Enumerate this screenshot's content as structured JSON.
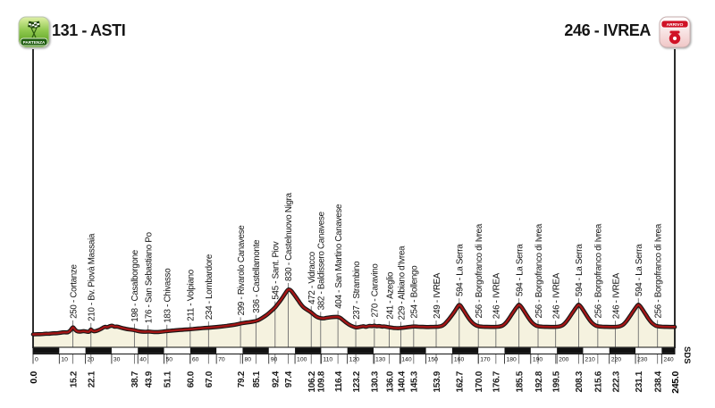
{
  "header": {
    "start_label": "131 - ASTI",
    "finish_label": "246 - IVREA",
    "start_badge": "PARTENZA",
    "finish_badge": "ARRIVO"
  },
  "watermark": "SDS",
  "colors": {
    "profile_red": "#a31616",
    "profile_outline": "#151515",
    "area_fill": "#f5f2df",
    "waypoint_line": "#6e6e6e",
    "start_green_dark": "#1e5c0e",
    "finish_red": "#d01226",
    "text": "#151515"
  },
  "chart_data": {
    "type": "area",
    "title": "",
    "xlabel": "km",
    "ylabel": "m",
    "x_range": [
      0,
      245
    ],
    "ruler_interval_km": 10,
    "ruler_tick_labels": [
      0,
      10,
      20,
      30,
      40,
      50,
      60,
      70,
      80,
      90,
      100,
      110,
      120,
      130,
      140,
      150,
      160,
      170,
      180,
      190,
      200,
      210,
      220,
      230,
      240
    ],
    "waypoints": [
      {
        "km": 0.0,
        "elev": 131,
        "label": "",
        "bold": true
      },
      {
        "km": 15.2,
        "elev": 250,
        "label": "250 - Cortanze"
      },
      {
        "km": 22.1,
        "elev": 210,
        "label": "210 - Bv. Piovà Massaia"
      },
      {
        "km": 38.7,
        "elev": 198,
        "label": "198 - Casalborgone"
      },
      {
        "km": 43.9,
        "elev": 176,
        "label": "176 - San Sebastiano Po"
      },
      {
        "km": 51.1,
        "elev": 183,
        "label": "183 - Chivasso"
      },
      {
        "km": 60.0,
        "elev": 211,
        "label": "211 - Volpiano"
      },
      {
        "km": 67.0,
        "elev": 234,
        "label": "234 - Lombardore"
      },
      {
        "km": 79.2,
        "elev": 299,
        "label": "299 - Rivarolo Canavese"
      },
      {
        "km": 85.1,
        "elev": 336,
        "label": "336 - Castellamonte"
      },
      {
        "km": 92.4,
        "elev": 545,
        "label": "545 - Sant. Piov"
      },
      {
        "km": 97.4,
        "elev": 830,
        "label": "830 - Castelnuovo Nigra"
      },
      {
        "km": 106.2,
        "elev": 472,
        "label": "472 - Vidracco"
      },
      {
        "km": 109.8,
        "elev": 382,
        "label": "382 - Baldissero Canavese"
      },
      {
        "km": 116.4,
        "elev": 404,
        "label": "404 - San Martino Canavese"
      },
      {
        "km": 123.2,
        "elev": 237,
        "label": "237 - Strambino"
      },
      {
        "km": 130.3,
        "elev": 270,
        "label": "270 - Caravino"
      },
      {
        "km": 136.0,
        "elev": 241,
        "label": "241 - Azeglio"
      },
      {
        "km": 140.4,
        "elev": 229,
        "label": "229 - Albiano d'Ivrea"
      },
      {
        "km": 145.3,
        "elev": 254,
        "label": "254 - Bollengo"
      },
      {
        "km": 153.9,
        "elev": 249,
        "label": "249 - IVREA"
      },
      {
        "km": 162.7,
        "elev": 594,
        "label": "594 - La Serra"
      },
      {
        "km": 170.0,
        "elev": 256,
        "label": "256 - Borgofranco di Ivrea"
      },
      {
        "km": 176.7,
        "elev": 246,
        "label": "246 - IVREA"
      },
      {
        "km": 185.5,
        "elev": 594,
        "label": "594 - La Serra"
      },
      {
        "km": 192.8,
        "elev": 256,
        "label": "256 - Borgofranco di Ivrea"
      },
      {
        "km": 199.5,
        "elev": 246,
        "label": "246 - IVREA"
      },
      {
        "km": 208.3,
        "elev": 594,
        "label": "594 - La Serra"
      },
      {
        "km": 215.6,
        "elev": 256,
        "label": "256 - Borgofranco di Ivrea"
      },
      {
        "km": 222.3,
        "elev": 246,
        "label": "246 - IVREA"
      },
      {
        "km": 231.1,
        "elev": 594,
        "label": "594 - La Serra"
      },
      {
        "km": 238.4,
        "elev": 256,
        "label": "256 - Borgofranco di Ivrea"
      },
      {
        "km": 245.0,
        "elev": 246,
        "label": "",
        "bold": true
      }
    ],
    "profile": [
      [
        0,
        131
      ],
      [
        1.5,
        136
      ],
      [
        3,
        133
      ],
      [
        4.5,
        142
      ],
      [
        6,
        139
      ],
      [
        7.5,
        150
      ],
      [
        9,
        147
      ],
      [
        10.5,
        158
      ],
      [
        12,
        166
      ],
      [
        13.2,
        158
      ],
      [
        14.3,
        190
      ],
      [
        15.2,
        250
      ],
      [
        15.8,
        215
      ],
      [
        16.5,
        182
      ],
      [
        17.5,
        172
      ],
      [
        18.5,
        176
      ],
      [
        19.5,
        183
      ],
      [
        20.5,
        172
      ],
      [
        21.4,
        168
      ],
      [
        21.9,
        200
      ],
      [
        22.1,
        210
      ],
      [
        22.6,
        186
      ],
      [
        23.5,
        176
      ],
      [
        24.5,
        190
      ],
      [
        25.5,
        205
      ],
      [
        26.5,
        228
      ],
      [
        27.5,
        252
      ],
      [
        28.3,
        238
      ],
      [
        29.2,
        258
      ],
      [
        30.2,
        268
      ],
      [
        31,
        248
      ],
      [
        32,
        254
      ],
      [
        33,
        240
      ],
      [
        34.5,
        224
      ],
      [
        36,
        212
      ],
      [
        37.5,
        204
      ],
      [
        38.7,
        198
      ],
      [
        40,
        182
      ],
      [
        41.5,
        173
      ],
      [
        43,
        170
      ],
      [
        43.9,
        176
      ],
      [
        45.5,
        169
      ],
      [
        47,
        166
      ],
      [
        48.5,
        170
      ],
      [
        50,
        176
      ],
      [
        51.1,
        183
      ],
      [
        53,
        189
      ],
      [
        55,
        196
      ],
      [
        57,
        202
      ],
      [
        58.5,
        207
      ],
      [
        60,
        211
      ],
      [
        62,
        219
      ],
      [
        64,
        226
      ],
      [
        65.5,
        230
      ],
      [
        67,
        234
      ],
      [
        69,
        241
      ],
      [
        71,
        249
      ],
      [
        73,
        258
      ],
      [
        75,
        268
      ],
      [
        77,
        280
      ],
      [
        79.2,
        299
      ],
      [
        81,
        312
      ],
      [
        83,
        322
      ],
      [
        85.1,
        336
      ],
      [
        86.5,
        360
      ],
      [
        88,
        398
      ],
      [
        89.5,
        440
      ],
      [
        91,
        495
      ],
      [
        92.4,
        545
      ],
      [
        93.5,
        605
      ],
      [
        94.7,
        668
      ],
      [
        95.7,
        730
      ],
      [
        96.6,
        785
      ],
      [
        97.4,
        830
      ],
      [
        98.2,
        822
      ],
      [
        99,
        785
      ],
      [
        99.8,
        740
      ],
      [
        100.6,
        695
      ],
      [
        101.4,
        648
      ],
      [
        102.2,
        600
      ],
      [
        103,
        560
      ],
      [
        103.8,
        532
      ],
      [
        104.6,
        513
      ],
      [
        105.4,
        492
      ],
      [
        106.2,
        472
      ],
      [
        107,
        442
      ],
      [
        107.9,
        412
      ],
      [
        108.8,
        392
      ],
      [
        109.8,
        382
      ],
      [
        110.8,
        377
      ],
      [
        111.8,
        384
      ],
      [
        113,
        392
      ],
      [
        114.2,
        398
      ],
      [
        115.3,
        401
      ],
      [
        116.4,
        404
      ],
      [
        117.4,
        385
      ],
      [
        118.4,
        352
      ],
      [
        119.4,
        318
      ],
      [
        120.5,
        285
      ],
      [
        121.8,
        258
      ],
      [
        123.2,
        237
      ],
      [
        124.2,
        241
      ],
      [
        125.2,
        252
      ],
      [
        126.2,
        258
      ],
      [
        127,
        246
      ],
      [
        127.8,
        256
      ],
      [
        128.6,
        263
      ],
      [
        129.4,
        256
      ],
      [
        130.3,
        270
      ],
      [
        131.2,
        254
      ],
      [
        132.2,
        262
      ],
      [
        133.2,
        250
      ],
      [
        134.2,
        256
      ],
      [
        135.1,
        246
      ],
      [
        136,
        241
      ],
      [
        137,
        234
      ],
      [
        138.2,
        229
      ],
      [
        139.3,
        227
      ],
      [
        140.4,
        229
      ],
      [
        141.6,
        236
      ],
      [
        143,
        243
      ],
      [
        144.2,
        249
      ],
      [
        145.3,
        254
      ],
      [
        146.5,
        251
      ],
      [
        148,
        248
      ],
      [
        149.5,
        246
      ],
      [
        151,
        245
      ],
      [
        152.5,
        247
      ],
      [
        153.9,
        249
      ],
      [
        155.3,
        253
      ],
      [
        156.5,
        268
      ],
      [
        157.5,
        305
      ],
      [
        158.5,
        352
      ],
      [
        159.5,
        405
      ],
      [
        160.5,
        460
      ],
      [
        161.4,
        515
      ],
      [
        162.1,
        560
      ],
      [
        162.7,
        594
      ],
      [
        163.3,
        572
      ],
      [
        164,
        525
      ],
      [
        165,
        462
      ],
      [
        166,
        398
      ],
      [
        167,
        342
      ],
      [
        168,
        300
      ],
      [
        169,
        272
      ],
      [
        170,
        256
      ],
      [
        171.2,
        251
      ],
      [
        172.5,
        248
      ],
      [
        174,
        247
      ],
      [
        175.4,
        246
      ],
      [
        176.7,
        246
      ],
      [
        178,
        251
      ],
      [
        179.2,
        264
      ],
      [
        180.2,
        295
      ],
      [
        181.2,
        345
      ],
      [
        182.2,
        405
      ],
      [
        183.2,
        468
      ],
      [
        184.2,
        528
      ],
      [
        185,
        570
      ],
      [
        185.5,
        594
      ],
      [
        186.1,
        574
      ],
      [
        186.9,
        528
      ],
      [
        187.9,
        465
      ],
      [
        188.9,
        400
      ],
      [
        189.9,
        342
      ],
      [
        190.9,
        298
      ],
      [
        191.9,
        268
      ],
      [
        192.8,
        256
      ],
      [
        194,
        251
      ],
      [
        195.4,
        248
      ],
      [
        196.8,
        247
      ],
      [
        198.2,
        246
      ],
      [
        199.5,
        246
      ],
      [
        200.8,
        252
      ],
      [
        202,
        266
      ],
      [
        203,
        298
      ],
      [
        204,
        348
      ],
      [
        205,
        408
      ],
      [
        206,
        470
      ],
      [
        207,
        530
      ],
      [
        207.8,
        572
      ],
      [
        208.3,
        594
      ],
      [
        208.9,
        574
      ],
      [
        209.7,
        528
      ],
      [
        210.7,
        465
      ],
      [
        211.7,
        400
      ],
      [
        212.7,
        342
      ],
      [
        213.7,
        298
      ],
      [
        214.7,
        268
      ],
      [
        215.6,
        256
      ],
      [
        216.8,
        251
      ],
      [
        218.2,
        248
      ],
      [
        219.6,
        247
      ],
      [
        221,
        246
      ],
      [
        222.3,
        246
      ],
      [
        223.6,
        252
      ],
      [
        224.8,
        266
      ],
      [
        225.8,
        298
      ],
      [
        226.8,
        348
      ],
      [
        227.8,
        408
      ],
      [
        228.8,
        470
      ],
      [
        229.8,
        530
      ],
      [
        230.6,
        572
      ],
      [
        231.1,
        594
      ],
      [
        231.7,
        574
      ],
      [
        232.5,
        528
      ],
      [
        233.5,
        465
      ],
      [
        234.5,
        400
      ],
      [
        235.5,
        342
      ],
      [
        236.5,
        298
      ],
      [
        237.5,
        268
      ],
      [
        238.4,
        256
      ],
      [
        239.6,
        251
      ],
      [
        241,
        248
      ],
      [
        242.5,
        247
      ],
      [
        244,
        246
      ],
      [
        245,
        246
      ]
    ]
  }
}
